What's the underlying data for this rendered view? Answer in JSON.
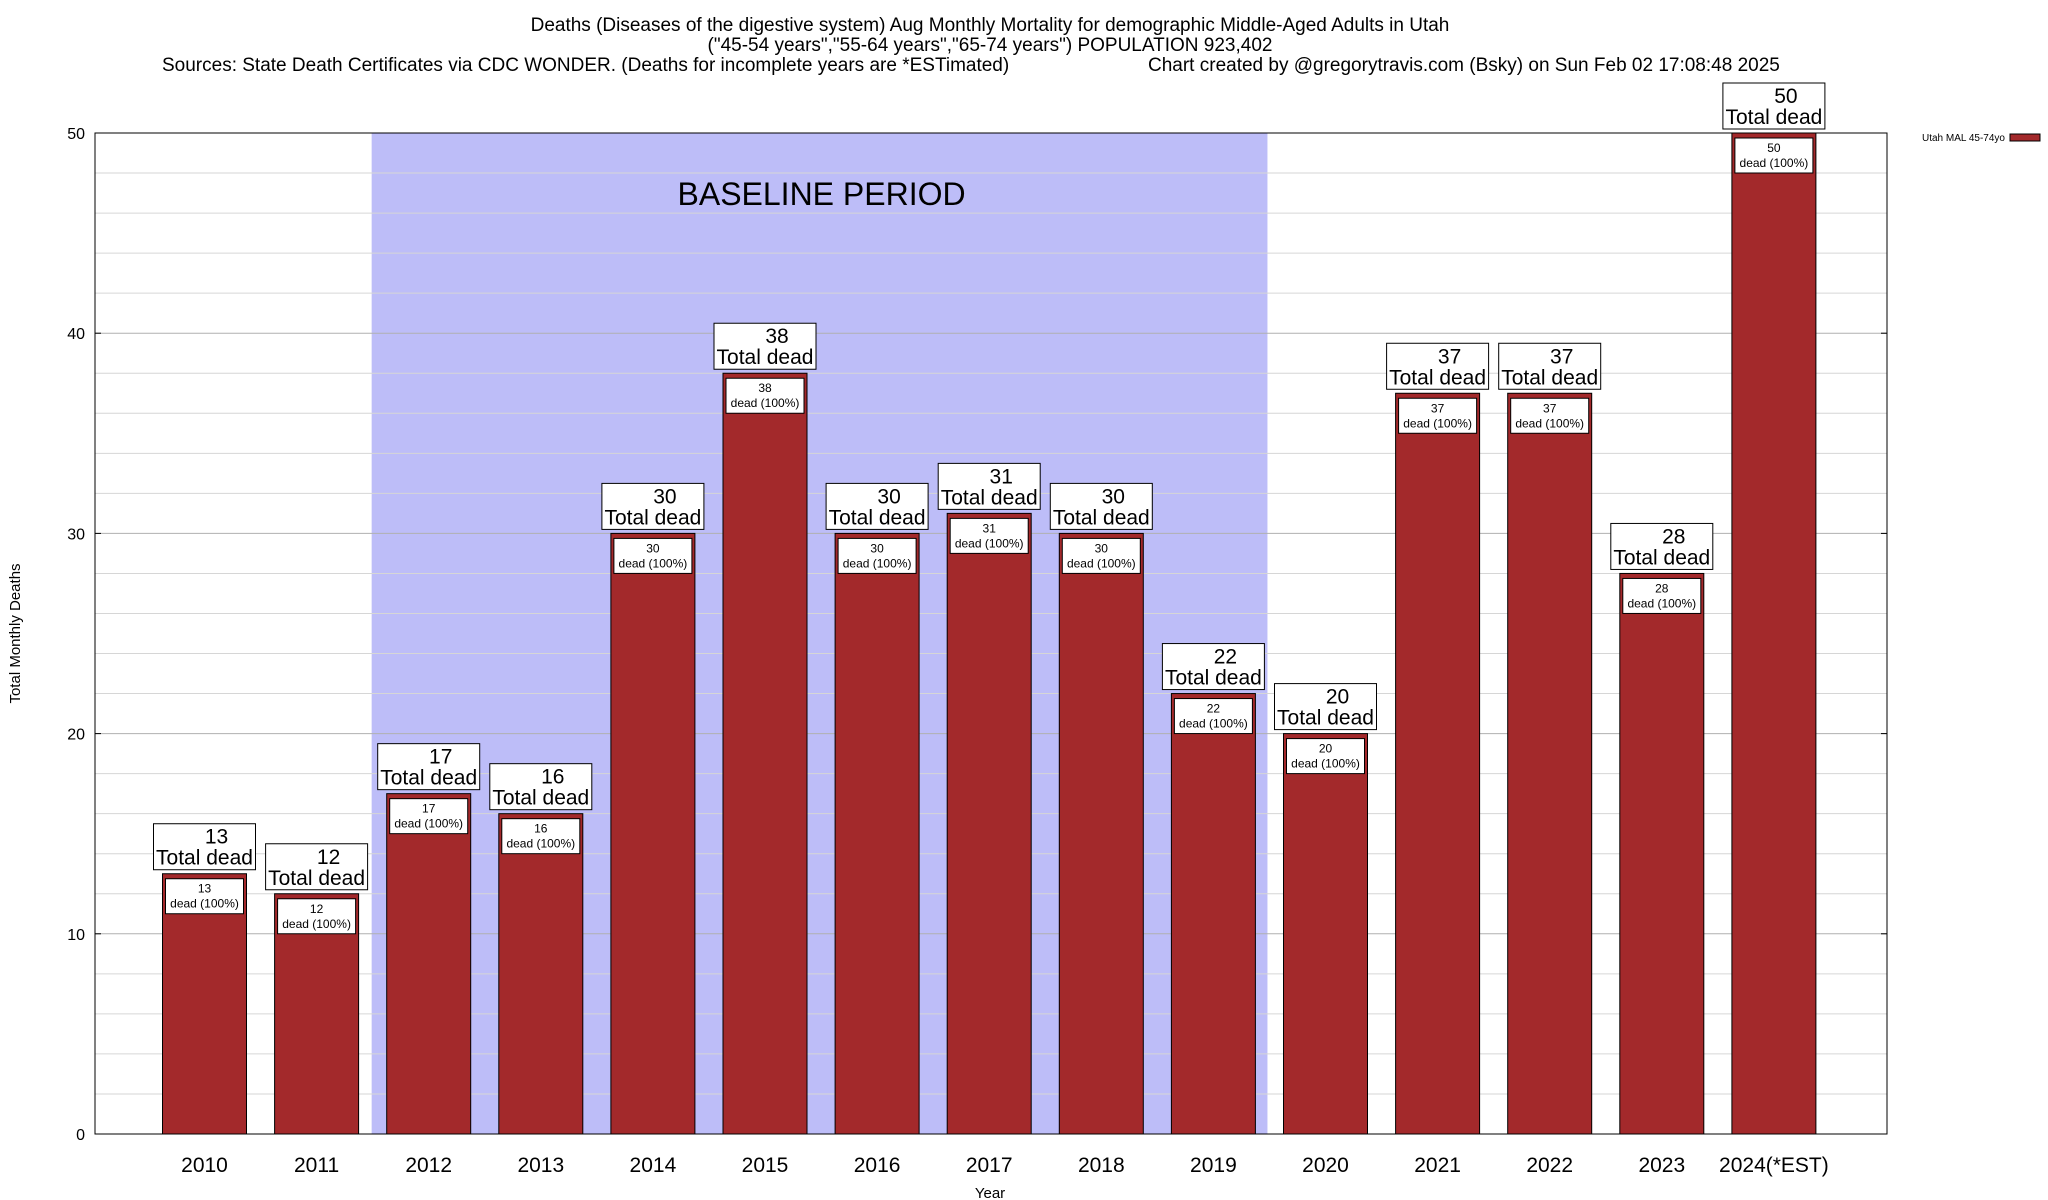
{
  "titles": {
    "line1": "Deaths (Diseases of the digestive system) Aug Monthly Mortality for demographic Middle-Aged Adults in Utah",
    "line2": "(\"45-54 years\",\"55-64 years\",\"65-74 years\") POPULATION 923,402",
    "line3_left": "Sources: State Death Certificates via CDC WONDER. (Deaths for incomplete years are *ESTimated)",
    "line3_right": "Chart created by @gregorytravis.com (Bsky) on Sun Feb 02 17:08:48 2025"
  },
  "labels": {
    "baseline": "BASELINE PERIOD",
    "total_suffix": "Total dead",
    "inner_suffix": "dead (100%)"
  },
  "chart_data": {
    "type": "bar",
    "xlabel": "Year",
    "ylabel": "Total Monthly Deaths",
    "ylim": [
      0,
      50
    ],
    "yticks": [
      0,
      10,
      20,
      30,
      40,
      50
    ],
    "grid": true,
    "legend_position": "top-right",
    "categories": [
      "2010",
      "2011",
      "2012",
      "2013",
      "2014",
      "2015",
      "2016",
      "2017",
      "2018",
      "2019",
      "2020",
      "2021",
      "2022",
      "2023",
      "2024(*EST)"
    ],
    "series": [
      {
        "name": "Utah MAL 45-74yo",
        "color": "#a3292b",
        "values": [
          13,
          12,
          17,
          16,
          30,
          38,
          30,
          31,
          30,
          22,
          20,
          37,
          37,
          28,
          50
        ]
      }
    ],
    "baseline_period": {
      "from": "2012",
      "to": "2019",
      "color": "#bdbdf8"
    }
  }
}
